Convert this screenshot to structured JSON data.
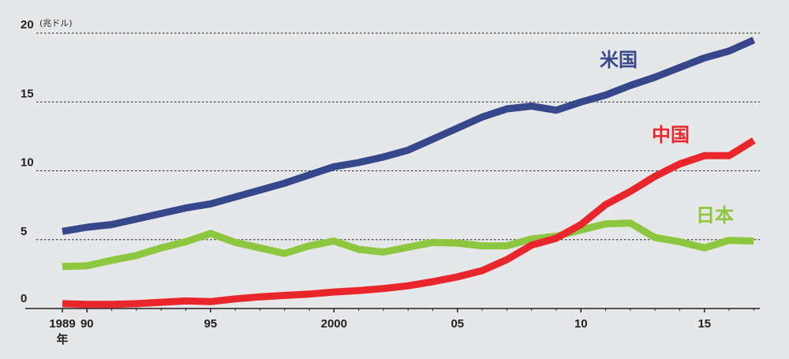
{
  "chart_data": {
    "type": "line",
    "ylabel": "(兆ドル)",
    "ylim": [
      0,
      20
    ],
    "yticks": [
      {
        "value": 0,
        "label": "0"
      },
      {
        "value": 5,
        "label": "5"
      },
      {
        "value": 10,
        "label": "10"
      },
      {
        "value": 15,
        "label": "15"
      },
      {
        "value": 20,
        "label": "20"
      }
    ],
    "xlim": [
      1989,
      2017
    ],
    "xticks": [
      {
        "value": 1989,
        "label": "1989"
      },
      {
        "value": 1990,
        "label": "90"
      },
      {
        "value": 1995,
        "label": "95"
      },
      {
        "value": 2000,
        "label": "2000"
      },
      {
        "value": 2005,
        "label": "05"
      },
      {
        "value": 2010,
        "label": "10"
      },
      {
        "value": 2015,
        "label": "15"
      }
    ],
    "x_unit_label": "年",
    "grid": "horizontal dashed",
    "x": [
      1989,
      1990,
      1991,
      1992,
      1993,
      1994,
      1995,
      1996,
      1997,
      1998,
      1999,
      2000,
      2001,
      2002,
      2003,
      2004,
      2005,
      2006,
      2007,
      2008,
      2009,
      2010,
      2011,
      2012,
      2013,
      2014,
      2015,
      2016,
      2017
    ],
    "series": [
      {
        "name": "米国",
        "color": "#36478c",
        "values": [
          5.6,
          5.9,
          6.1,
          6.5,
          6.9,
          7.3,
          7.6,
          8.1,
          8.6,
          9.1,
          9.7,
          10.3,
          10.6,
          11.0,
          11.5,
          12.3,
          13.1,
          13.9,
          14.5,
          14.7,
          14.4,
          15.0,
          15.5,
          16.2,
          16.8,
          17.5,
          18.2,
          18.7,
          19.5
        ]
      },
      {
        "name": "中国",
        "color": "#e8262b",
        "values": [
          0.35,
          0.3,
          0.3,
          0.35,
          0.45,
          0.55,
          0.5,
          0.7,
          0.85,
          0.95,
          1.05,
          1.2,
          1.3,
          1.45,
          1.65,
          1.95,
          2.3,
          2.75,
          3.55,
          4.6,
          5.1,
          6.1,
          7.55,
          8.5,
          9.6,
          10.5,
          11.1,
          11.1,
          12.2
        ]
      },
      {
        "name": "日本",
        "color": "#8dc63f",
        "values": [
          3.05,
          3.1,
          3.5,
          3.85,
          4.4,
          4.85,
          5.45,
          4.8,
          4.4,
          4.0,
          4.55,
          4.9,
          4.3,
          4.1,
          4.45,
          4.8,
          4.75,
          4.55,
          4.55,
          5.05,
          5.25,
          5.7,
          6.15,
          6.2,
          5.15,
          4.85,
          4.4,
          4.95,
          4.9
        ]
      }
    ],
    "series_labels": {
      "us": "米国",
      "china": "中国",
      "japan": "日本"
    }
  }
}
